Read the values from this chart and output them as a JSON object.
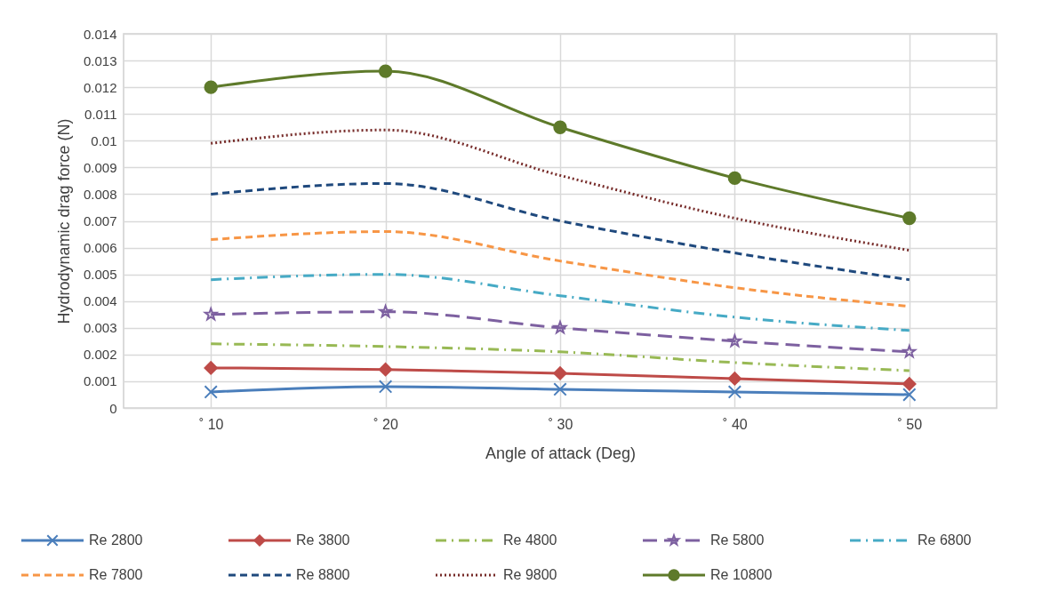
{
  "chart_data": {
    "type": "line",
    "xlabel": "Angle of attack (Deg)",
    "ylabel": "Hydrodynamic  drag force (N)",
    "categories": [
      "˚ 10",
      "˚ 20",
      "˚ 30",
      "˚ 40",
      "˚ 50"
    ],
    "ylim": [
      0,
      0.014
    ],
    "yticks": [
      0,
      0.001,
      0.002,
      0.003,
      0.004,
      0.005,
      0.006,
      0.007,
      0.008,
      0.009,
      0.01,
      0.011,
      0.012,
      0.013,
      0.014
    ],
    "grid": true,
    "legend": "bottom",
    "series": [
      {
        "name": "Re 2800",
        "color": "#4a7ebb",
        "line_style": "solid",
        "marker": "cross",
        "values": [
          0.0006,
          0.0008,
          0.0007,
          0.0006,
          0.0005
        ]
      },
      {
        "name": "Re 3800",
        "color": "#be4b48",
        "line_style": "solid",
        "marker": "diamond",
        "values": [
          0.0015,
          0.00144,
          0.0013,
          0.0011,
          0.0009
        ]
      },
      {
        "name": "Re 4800",
        "color": "#98b954",
        "line_style": "dashdot",
        "marker": "none",
        "values": [
          0.0024,
          0.0023,
          0.0021,
          0.0017,
          0.0014
        ]
      },
      {
        "name": "Re 5800",
        "color": "#7d60a0",
        "line_style": "longdash",
        "marker": "star",
        "values": [
          0.0035,
          0.0036,
          0.003,
          0.0025,
          0.0021
        ]
      },
      {
        "name": "Re 6800",
        "color": "#46aac5",
        "line_style": "dashdot",
        "marker": "none",
        "values": [
          0.0048,
          0.005,
          0.0042,
          0.0034,
          0.0029
        ]
      },
      {
        "name": "Re 7800",
        "color": "#f79646",
        "line_style": "dashed",
        "marker": "none",
        "values": [
          0.0063,
          0.0066,
          0.0055,
          0.0045,
          0.0038
        ]
      },
      {
        "name": "Re 8800",
        "color": "#1f497d",
        "line_style": "dashed",
        "marker": "none",
        "values": [
          0.008,
          0.0084,
          0.007,
          0.0058,
          0.0048
        ]
      },
      {
        "name": "Re 9800",
        "color": "#772c2a",
        "line_style": "dotted",
        "marker": "none",
        "values": [
          0.0099,
          0.0104,
          0.0087,
          0.0071,
          0.0059
        ]
      },
      {
        "name": "Re 10800",
        "color": "#5e7a2a",
        "line_style": "solid",
        "marker": "circle",
        "values": [
          0.012,
          0.0126,
          0.0105,
          0.0086,
          0.0071
        ]
      }
    ]
  }
}
